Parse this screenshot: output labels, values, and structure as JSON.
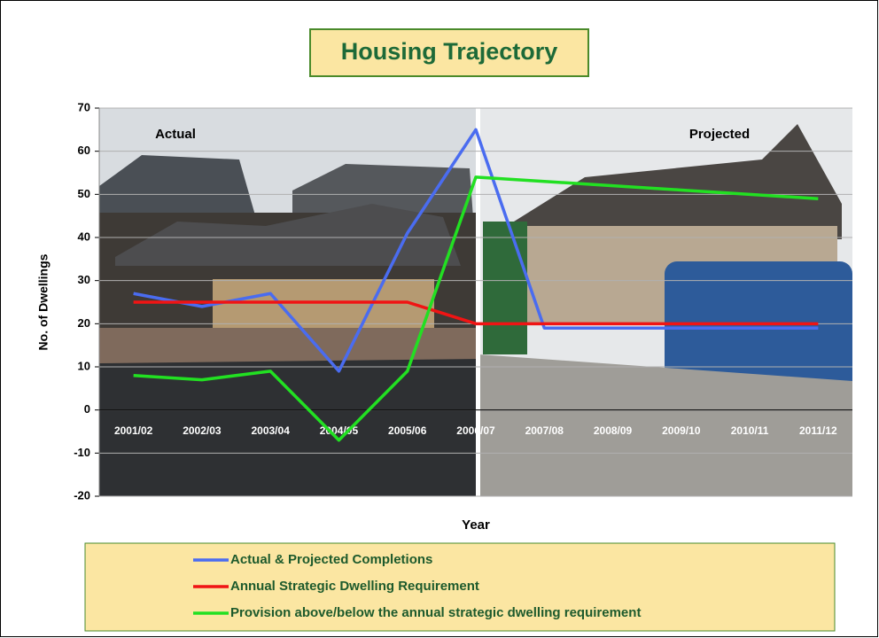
{
  "chart_data": {
    "type": "line",
    "title": "Housing Trajectory",
    "ylabel": "No. of Dwellings",
    "xlabel": "Year",
    "annotations": [
      "Actual",
      "Projected"
    ],
    "categories": [
      "2001/02",
      "2002/03",
      "2003/04",
      "2004/05",
      "2005/06",
      "2006/07",
      "2007/08",
      "2008/09",
      "2009/10",
      "2010/11",
      "2011/12"
    ],
    "series": [
      {
        "name": "Actual & Projected Completions",
        "color": "#4a6cf0",
        "values": [
          27,
          24,
          27,
          9,
          41,
          65,
          19,
          19,
          19,
          19,
          19
        ]
      },
      {
        "name": "Annual Strategic Dwelling Requirement",
        "color": "#f01414",
        "values": [
          25,
          25,
          25,
          25,
          25,
          20,
          20,
          20,
          20,
          20,
          20
        ]
      },
      {
        "name": "Provision above/below the annual strategic dwelling requirement",
        "color": "#22e022",
        "values": [
          8,
          7,
          9,
          -7,
          9,
          54,
          53,
          52,
          51,
          50,
          49
        ]
      }
    ],
    "ylim": [
      -20,
      70
    ],
    "yticks": [
      -20,
      -10,
      0,
      10,
      20,
      30,
      40,
      50,
      60,
      70
    ],
    "grid": true
  }
}
